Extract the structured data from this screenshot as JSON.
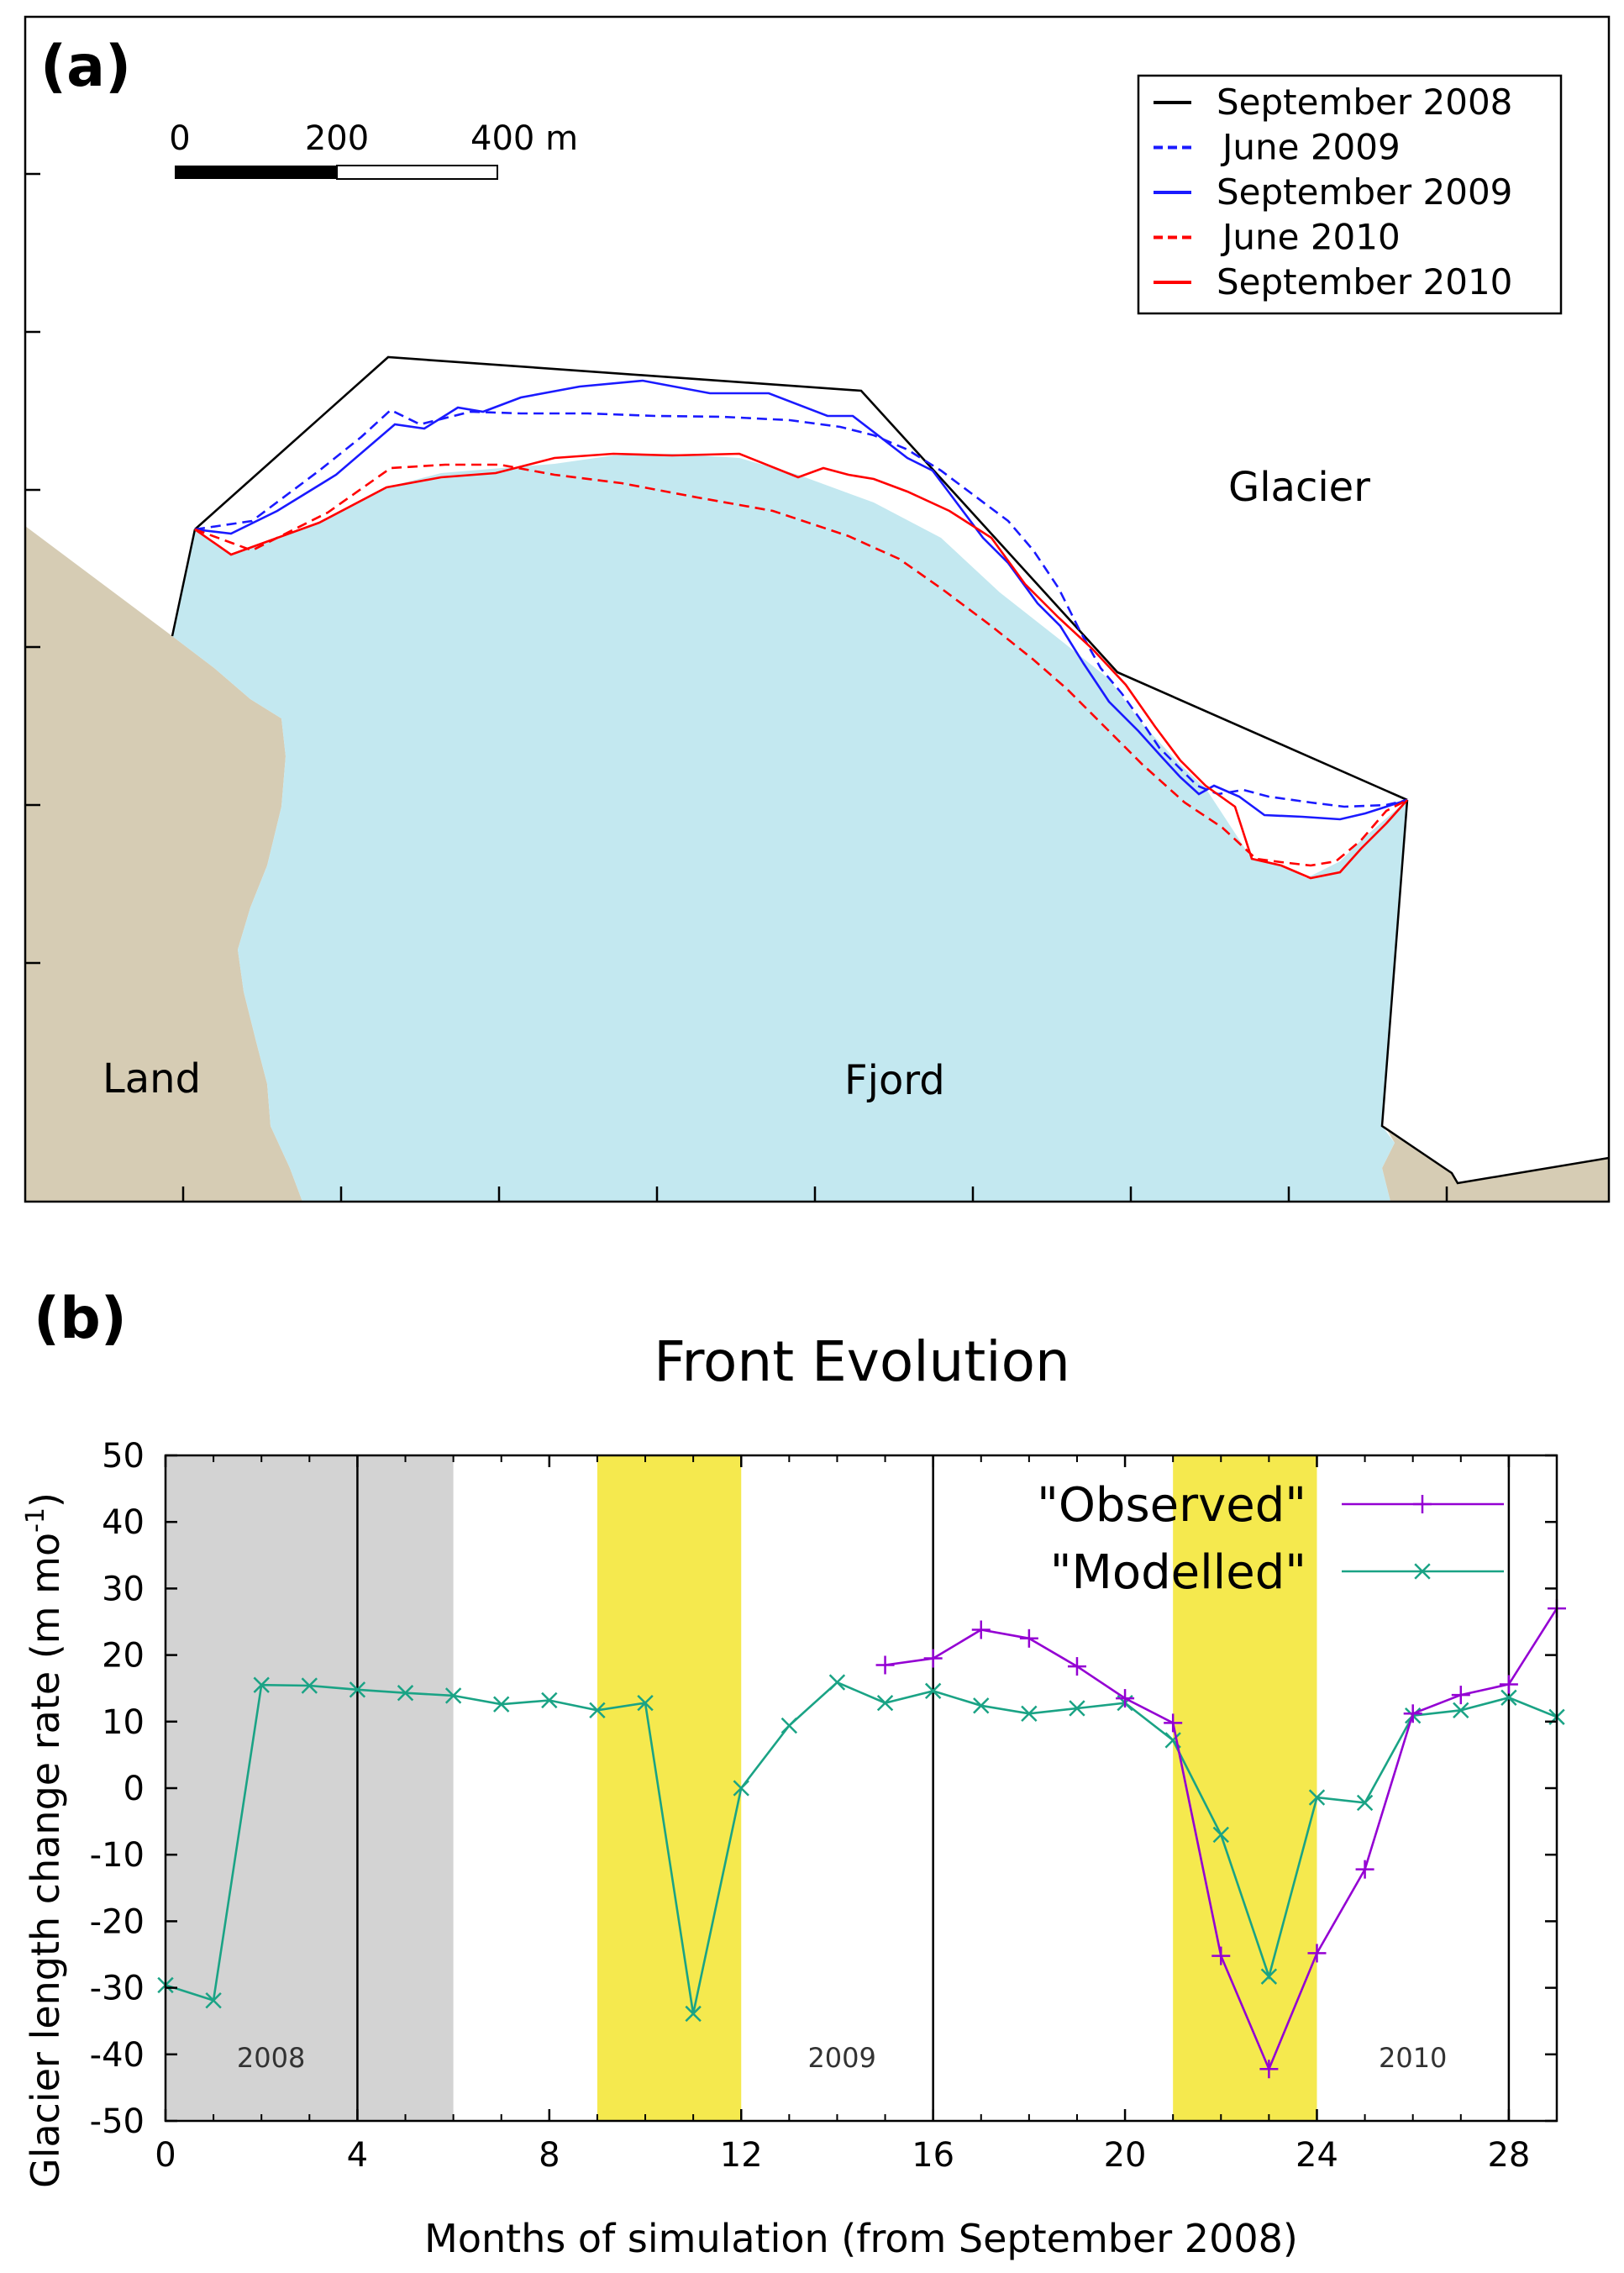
{
  "panel_a": {
    "label": "(a)",
    "scale_bar": {
      "ticks": [
        "0",
        "200",
        "400 m"
      ]
    },
    "region_labels": {
      "glacier": "Glacier",
      "land": "Land",
      "fjord": "Fjord"
    },
    "legend": [
      {
        "label": "September 2008",
        "color": "#000000",
        "dash": false
      },
      {
        "label": "June 2009",
        "color": "#1a1aff",
        "dash": true
      },
      {
        "label": "September 2009",
        "color": "#1a1aff",
        "dash": false
      },
      {
        "label": "June 2010",
        "color": "#ff0000",
        "dash": true
      },
      {
        "label": "September 2010",
        "color": "#ff0000",
        "dash": false
      }
    ],
    "colors": {
      "land": "#d6ccb4",
      "fjord": "#c3e8f0"
    }
  },
  "panel_b": {
    "label": "(b)"
  },
  "chart_data": {
    "type": "line",
    "title": "Front Evolution",
    "xlabel": "Months of simulation (from September 2008)",
    "ylabel": "Glacier length change rate (m mo",
    "ylabel_sup": "-1",
    "ylabel_end": ")",
    "xlim": [
      0,
      29
    ],
    "ylim": [
      -50,
      50
    ],
    "xticks": [
      0,
      4,
      8,
      12,
      16,
      20,
      24,
      28
    ],
    "yticks": [
      -50,
      -40,
      -30,
      -20,
      -10,
      0,
      10,
      20,
      30,
      40,
      50
    ],
    "grid": false,
    "legend_position": "top-right",
    "shaded_regions": [
      {
        "x0": 0,
        "x1": 6,
        "color": "#d3d3d3"
      },
      {
        "x0": 9,
        "x1": 12,
        "color": "#f5e94e"
      },
      {
        "x0": 21,
        "x1": 24,
        "color": "#f5e94e"
      }
    ],
    "vertical_lines": [
      4,
      16,
      28
    ],
    "year_labels": [
      {
        "x": 2.2,
        "text": "2008"
      },
      {
        "x": 14.1,
        "text": "2009"
      },
      {
        "x": 26.0,
        "text": "2010"
      }
    ],
    "series": [
      {
        "name": "\"Observed\"",
        "color": "#9400d3",
        "marker": "+",
        "x": [
          15,
          16,
          17,
          18,
          19,
          20,
          21,
          22,
          23,
          24,
          25,
          26,
          27,
          28,
          29
        ],
        "y": [
          18.5,
          19.5,
          23.8,
          22.5,
          18.3,
          13.5,
          9.8,
          -25.2,
          -42.2,
          -24.8,
          -12.2,
          11.2,
          14.0,
          15.6,
          27.0
        ]
      },
      {
        "name": "\"Modelled\"",
        "color": "#1aa385",
        "marker": "x",
        "x": [
          0,
          1,
          2,
          3,
          4,
          5,
          6,
          7,
          8,
          9,
          10,
          11,
          12,
          13,
          14,
          15,
          16,
          17,
          18,
          19,
          20,
          21,
          22,
          23,
          24,
          25,
          26,
          27,
          28,
          29
        ],
        "y": [
          -29.6,
          -31.9,
          15.5,
          15.4,
          14.8,
          14.3,
          13.9,
          12.6,
          13.2,
          11.7,
          12.8,
          -33.9,
          0.0,
          9.4,
          15.9,
          12.8,
          14.6,
          12.4,
          11.2,
          12.0,
          12.8,
          7.2,
          -7.0,
          -28.3,
          -1.4,
          -2.2,
          10.9,
          11.7,
          13.6,
          10.7
        ]
      }
    ]
  }
}
